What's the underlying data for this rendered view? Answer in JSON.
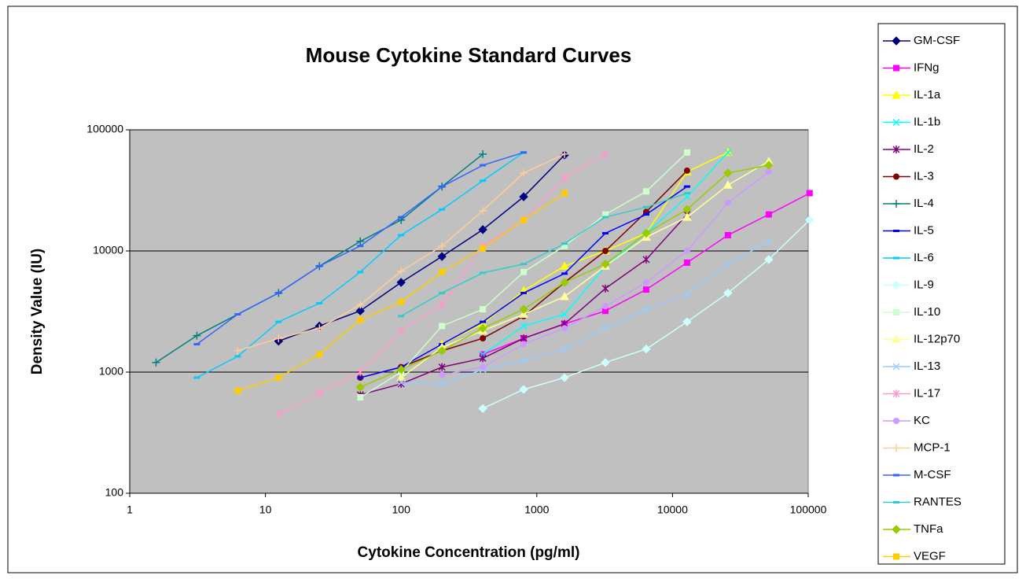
{
  "chart_data": {
    "type": "line",
    "title": "Mouse Cytokine Standard Curves",
    "x_label": "Cytokine Concentration (pg/ml)",
    "y_label": "Density Value (IU)",
    "x_scale": "log",
    "y_scale": "log",
    "grid": true,
    "legend": "right",
    "xlim": [
      1,
      100000
    ],
    "ylim": [
      100,
      100000
    ],
    "xticks": [
      1,
      10,
      100,
      1000,
      10000,
      100000
    ],
    "yticks": [
      100,
      1000,
      10000,
      100000
    ],
    "series": [
      {
        "name": "GM-CSF",
        "color": "#000080",
        "marker": "diamond",
        "x": [
          12.5,
          25,
          50,
          100,
          200,
          400,
          800,
          1600
        ],
        "values": [
          1800,
          2400,
          3200,
          5500,
          9000,
          15000,
          28000,
          62000
        ]
      },
      {
        "name": "IFNg",
        "color": "#ff00ff",
        "marker": "square",
        "x": [
          400,
          800,
          1600,
          3200,
          6400,
          12800,
          25600,
          51200,
          102400
        ],
        "values": [
          1400,
          1900,
          2500,
          3200,
          4800,
          8000,
          13500,
          20000,
          30000
        ]
      },
      {
        "name": "IL-1a",
        "color": "#ffff00",
        "marker": "triangle",
        "x": [
          200,
          400,
          800,
          1600,
          3200,
          6400,
          12800,
          25600
        ],
        "values": [
          1700,
          2500,
          4700,
          7500,
          10000,
          14000,
          45000,
          65000
        ]
      },
      {
        "name": "IL-1b",
        "color": "#00ffff",
        "marker": "x",
        "x": [
          400,
          800,
          1600,
          3200,
          6400,
          12800,
          25600
        ],
        "values": [
          1400,
          2400,
          3000,
          7500,
          14000,
          28000,
          65000
        ]
      },
      {
        "name": "IL-2",
        "color": "#800080",
        "marker": "star",
        "x": [
          50,
          100,
          200,
          400,
          800,
          1600,
          3200,
          6400,
          12800
        ],
        "values": [
          650,
          800,
          1100,
          1300,
          1900,
          2500,
          4900,
          8500,
          20000
        ]
      },
      {
        "name": "IL-3",
        "color": "#800000",
        "marker": "circle",
        "x": [
          50,
          100,
          200,
          400,
          800,
          1600,
          3200,
          6400,
          12800
        ],
        "values": [
          900,
          1100,
          1500,
          1900,
          2900,
          5500,
          10000,
          21000,
          46000
        ]
      },
      {
        "name": "IL-4",
        "color": "#008080",
        "marker": "plus",
        "x": [
          1.5625,
          3.125,
          12.5,
          25,
          50,
          100,
          200,
          400
        ],
        "values": [
          1200,
          2000,
          4500,
          7500,
          12000,
          18000,
          34000,
          63000
        ]
      },
      {
        "name": "IL-5",
        "color": "#0000ff",
        "marker": "dash",
        "x": [
          50,
          100,
          200,
          400,
          800,
          1600,
          3200,
          6400,
          12800
        ],
        "values": [
          900,
          1100,
          1700,
          2600,
          4500,
          6500,
          14000,
          20000,
          34000
        ]
      },
      {
        "name": "IL-6",
        "color": "#00ccff",
        "marker": "dash",
        "x": [
          3.125,
          6.25,
          12.5,
          25,
          50,
          100,
          200,
          400,
          800
        ],
        "values": [
          900,
          1350,
          2600,
          3700,
          6700,
          13500,
          22000,
          38000,
          65000
        ]
      },
      {
        "name": "IL-9",
        "color": "#ccffff",
        "marker": "diamond",
        "x": [
          400,
          800,
          1600,
          3200,
          6400,
          12800,
          25600,
          51200,
          102400
        ],
        "values": [
          500,
          720,
          900,
          1200,
          1550,
          2600,
          4500,
          8500,
          18000
        ]
      },
      {
        "name": "IL-10",
        "color": "#ccffcc",
        "marker": "square",
        "x": [
          50,
          100,
          200,
          400,
          800,
          1600,
          3200,
          6400,
          12800
        ],
        "values": [
          620,
          1000,
          2400,
          3300,
          6700,
          11000,
          20000,
          31000,
          65000
        ]
      },
      {
        "name": "IL-12p70",
        "color": "#ffff99",
        "marker": "triangle",
        "x": [
          100,
          200,
          400,
          800,
          1600,
          3200,
          6400,
          12800,
          25600,
          51200
        ],
        "values": [
          900,
          1600,
          2200,
          3000,
          4200,
          7500,
          13000,
          19000,
          35000,
          55000
        ]
      },
      {
        "name": "IL-13",
        "color": "#99ccff",
        "marker": "x",
        "x": [
          100,
          200,
          400,
          800,
          1600,
          3200,
          6400,
          12800,
          25600,
          51200
        ],
        "values": [
          820,
          800,
          1050,
          1250,
          1550,
          2300,
          3300,
          4400,
          7800,
          12000
        ]
      },
      {
        "name": "IL-17",
        "color": "#ff99cc",
        "marker": "star",
        "x": [
          12.5,
          25,
          50,
          100,
          200,
          400,
          800,
          1600,
          3200
        ],
        "values": [
          450,
          670,
          1000,
          2200,
          3600,
          11000,
          18000,
          40000,
          63000
        ]
      },
      {
        "name": "KC",
        "color": "#cc99ff",
        "marker": "circle",
        "x": [
          200,
          400,
          800,
          1600,
          3200,
          6400,
          12800,
          25600,
          51200
        ],
        "values": [
          950,
          1100,
          1700,
          2300,
          3500,
          5500,
          10000,
          25000,
          45000
        ]
      },
      {
        "name": "MCP-1",
        "color": "#ffcc99",
        "marker": "plus",
        "x": [
          6.25,
          12.5,
          25,
          50,
          100,
          200,
          400,
          800,
          1600
        ],
        "values": [
          1500,
          1900,
          2300,
          3600,
          6800,
          11000,
          21500,
          44000,
          63000
        ]
      },
      {
        "name": "M-CSF",
        "color": "#3366ff",
        "marker": "dash",
        "x": [
          3.125,
          6.25,
          12.5,
          25,
          50,
          100,
          200,
          400,
          800
        ],
        "values": [
          1700,
          3000,
          4500,
          7500,
          11000,
          19000,
          34000,
          51000,
          65000
        ]
      },
      {
        "name": "RANTES",
        "color": "#33cccc",
        "marker": "dash",
        "x": [
          100,
          200,
          400,
          800,
          1600,
          3200,
          6400,
          12800
        ],
        "values": [
          2900,
          4500,
          6600,
          7800,
          11500,
          19000,
          23000,
          30000
        ]
      },
      {
        "name": "TNFa",
        "color": "#99cc00",
        "marker": "diamond",
        "x": [
          50,
          100,
          200,
          400,
          800,
          1600,
          3200,
          6400,
          12800,
          25600,
          51200
        ],
        "values": [
          750,
          1050,
          1500,
          2300,
          3300,
          5500,
          7800,
          14000,
          22000,
          44000,
          51000
        ]
      },
      {
        "name": "VEGF",
        "color": "#ffcc00",
        "marker": "square",
        "x": [
          6.25,
          12.5,
          25,
          50,
          100,
          200,
          400,
          800,
          1600
        ],
        "values": [
          700,
          900,
          1400,
          2700,
          3800,
          6700,
          10500,
          18000,
          30000
        ]
      }
    ]
  }
}
